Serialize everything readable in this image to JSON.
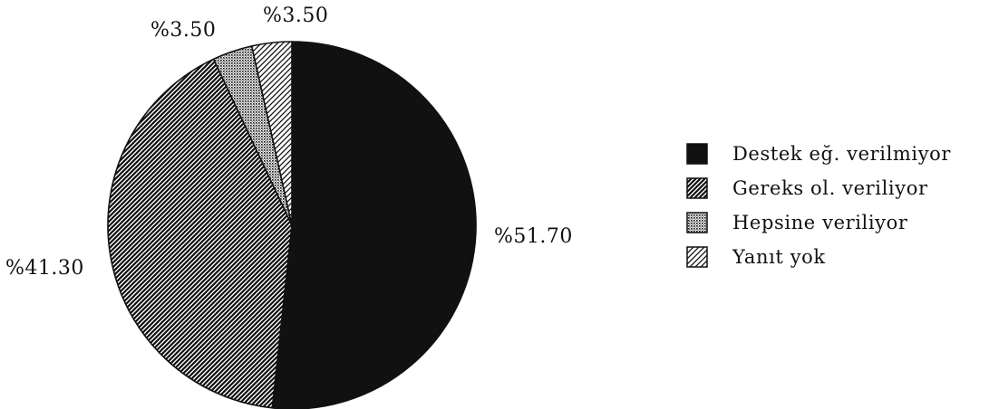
{
  "chart_data": {
    "type": "pie",
    "slices": [
      {
        "label": "Destek eğ. verilmiyor",
        "value": 51.7,
        "display": "%51.70",
        "pattern": "solid"
      },
      {
        "label": "Gereks ol. veriliyor",
        "value": 41.3,
        "display": "%41.30",
        "pattern": "dense-diagonal"
      },
      {
        "label": "Hepsine veriliyor",
        "value": 3.5,
        "display": "%3.50",
        "pattern": "dots"
      },
      {
        "label": "Yanıt yok",
        "value": 3.5,
        "display": "%3.50",
        "pattern": "sparse-diagonal"
      }
    ],
    "start": "12 o'clock",
    "direction": "clockwise",
    "legend_position": "right",
    "colors": {
      "ink": "#111111",
      "background": "#ffffff"
    }
  }
}
